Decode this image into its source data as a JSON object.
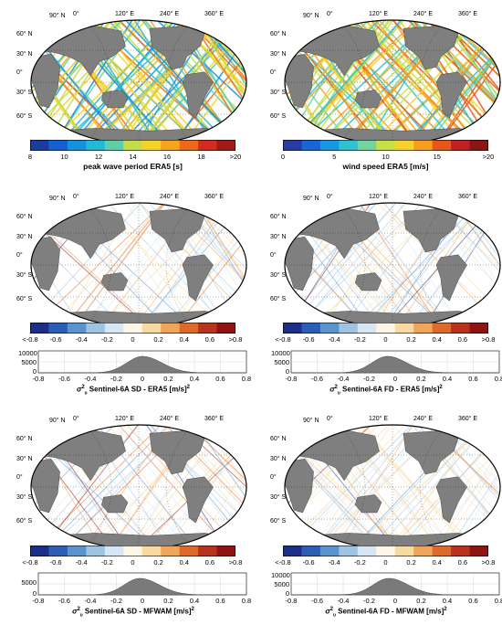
{
  "maps": {
    "lon_labels": [
      "0°",
      "120° E",
      "240° E",
      "360° E"
    ],
    "lon_top_left": "90° S",
    "lat_labels_left": [
      "90° N",
      "60° N",
      "30° N",
      "0°",
      "30° S",
      "60° S"
    ],
    "lat_labels_right": [
      "90° N",
      "60° N",
      "30° N",
      "0°",
      "30° S",
      "60° S"
    ],
    "bottom_label": "90° S",
    "land_color": "#7f7f7f",
    "ocean_color": "#ffffff"
  },
  "panels": [
    {
      "id": "p1",
      "field": "peak wave period ERA5",
      "unit": "[s]"
    },
    {
      "id": "p2",
      "field": "wind speed ERA5",
      "unit": "[m/s]"
    },
    {
      "id": "p3",
      "field": "Sentinel-6A SD - ERA5",
      "unit": "[m/s]"
    },
    {
      "id": "p4",
      "field": "Sentinel-6A FD - ERA5",
      "unit": "[m/s]"
    },
    {
      "id": "p5",
      "field": "Sentinel-6A SD - MFWAM",
      "unit": "[m/s]"
    },
    {
      "id": "p6",
      "field": "Sentinel-6A FD - MFWAM",
      "unit": "[m/s]"
    }
  ],
  "colorbars": {
    "period": {
      "title": "peak wave period ERA5 [s]",
      "ticks": [
        "8",
        "10",
        "12",
        "14",
        "16",
        "18",
        ">20"
      ],
      "colors": [
        "#1a3c9a",
        "#1560d0",
        "#1591e0",
        "#22b9d6",
        "#5fcfa7",
        "#c3dd4a",
        "#f6d32b",
        "#f7a51f",
        "#ee6a1a",
        "#d12c1e",
        "#a01a1a"
      ]
    },
    "wind": {
      "title": "wind speed ERA5 [m/s]",
      "ticks": [
        "0",
        "5",
        "10",
        "15",
        ">20"
      ],
      "colors": [
        "#2a3aa3",
        "#1766d6",
        "#1a97e3",
        "#2ec2d2",
        "#72d59f",
        "#c9df47",
        "#f7d22c",
        "#f79e1e",
        "#e6581a",
        "#c02020",
        "#8b1616"
      ]
    },
    "diff": {
      "ticks": [
        "<-0.8",
        "-0.6",
        "-0.4",
        "-0.2",
        "0",
        "0.2",
        "0.4",
        "0.6",
        ">0.8"
      ],
      "colors": [
        "#1c2f88",
        "#2b5fb6",
        "#5a94cf",
        "#9ec3e3",
        "#d6e7f3",
        "#fdf6e6",
        "#f8d9a0",
        "#f1a55a",
        "#dd6a2b",
        "#b8321c",
        "#8f1313"
      ]
    }
  },
  "histograms": [
    {
      "id": "h3",
      "yticks": [
        "10000",
        "5000",
        "0"
      ],
      "xticks": [
        "-0.8",
        "-0.6",
        "-0.4",
        "-0.2",
        "0",
        "0.2",
        "0.4",
        "0.6",
        "0.8"
      ],
      "sigma": "σ",
      "sup": "2",
      "sub": "υ",
      "label": " Sentinel-6A SD - ERA5 [m/s]",
      "label_sup": "2",
      "peak": 0.0
    },
    {
      "id": "h4",
      "yticks": [
        "10000",
        "5000",
        "0"
      ],
      "xticks": [
        "-0.8",
        "-0.6",
        "-0.4",
        "-0.2",
        "0",
        "0.2",
        "0.4",
        "0.6",
        "0.8"
      ],
      "sigma": "σ",
      "sup": "2",
      "sub": "υ",
      "label": " Sentinel-6A FD - ERA5 [m/s]",
      "label_sup": "2",
      "peak": -0.06
    },
    {
      "id": "h5",
      "yticks": [
        "5000",
        "0"
      ],
      "xticks": [
        "-0.8",
        "-0.6",
        "-0.4",
        "-0.2",
        "0",
        "0.2",
        "0.4",
        "0.6",
        "0.8"
      ],
      "sigma": "σ",
      "sup": "2",
      "sub": "υ",
      "label": " Sentinel-6A SD - MFWAM [m/s]",
      "label_sup": "2",
      "peak": -0.02
    },
    {
      "id": "h6",
      "yticks": [
        "10000",
        "5000",
        "0"
      ],
      "xticks": [
        "-0.8",
        "-0.6",
        "-0.4",
        "-0.2",
        "0",
        "0.2",
        "0.4",
        "0.6",
        "0.8"
      ],
      "sigma": "σ",
      "sup": "2",
      "sub": "υ",
      "label": " Sentinel-6A FD - MFWAM [m/s]",
      "label_sup": "2",
      "peak": -0.05
    }
  ]
}
